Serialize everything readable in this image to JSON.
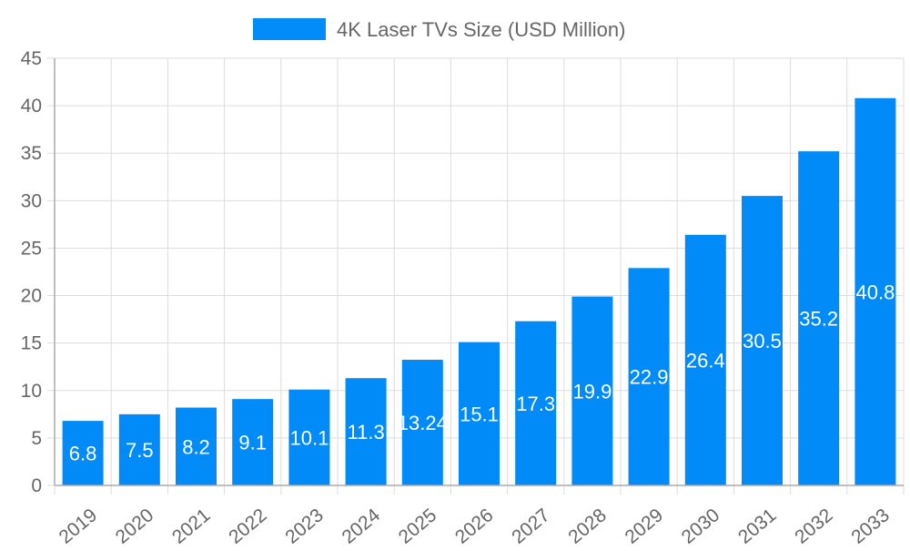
{
  "chart_data": {
    "type": "bar",
    "title": "",
    "xlabel": "",
    "ylabel": "",
    "categories": [
      "2019",
      "2020",
      "2021",
      "2022",
      "2023",
      "2024",
      "2025",
      "2026",
      "2027",
      "2028",
      "2029",
      "2030",
      "2031",
      "2032",
      "2033"
    ],
    "series": [
      {
        "name": "4K Laser TVs Size (USD Million)",
        "values": [
          6.8,
          7.5,
          8.2,
          9.1,
          10.1,
          11.3,
          13.24,
          15.1,
          17.3,
          19.9,
          22.9,
          26.4,
          30.5,
          35.2,
          40.8
        ],
        "color": "#008bf8"
      }
    ],
    "data_labels": [
      "6.8",
      "7.5",
      "8.2",
      "9.1",
      "10.1",
      "11.3",
      "13.24",
      "15.1",
      "17.3",
      "19.9",
      "22.9",
      "26.4",
      "30.5",
      "35.2",
      "40.8"
    ],
    "ylim": [
      0,
      45
    ],
    "yticks": [
      "0",
      "5",
      "10",
      "15",
      "20",
      "25",
      "30",
      "35",
      "40",
      "45"
    ],
    "grid": true,
    "legend_position": "top"
  }
}
